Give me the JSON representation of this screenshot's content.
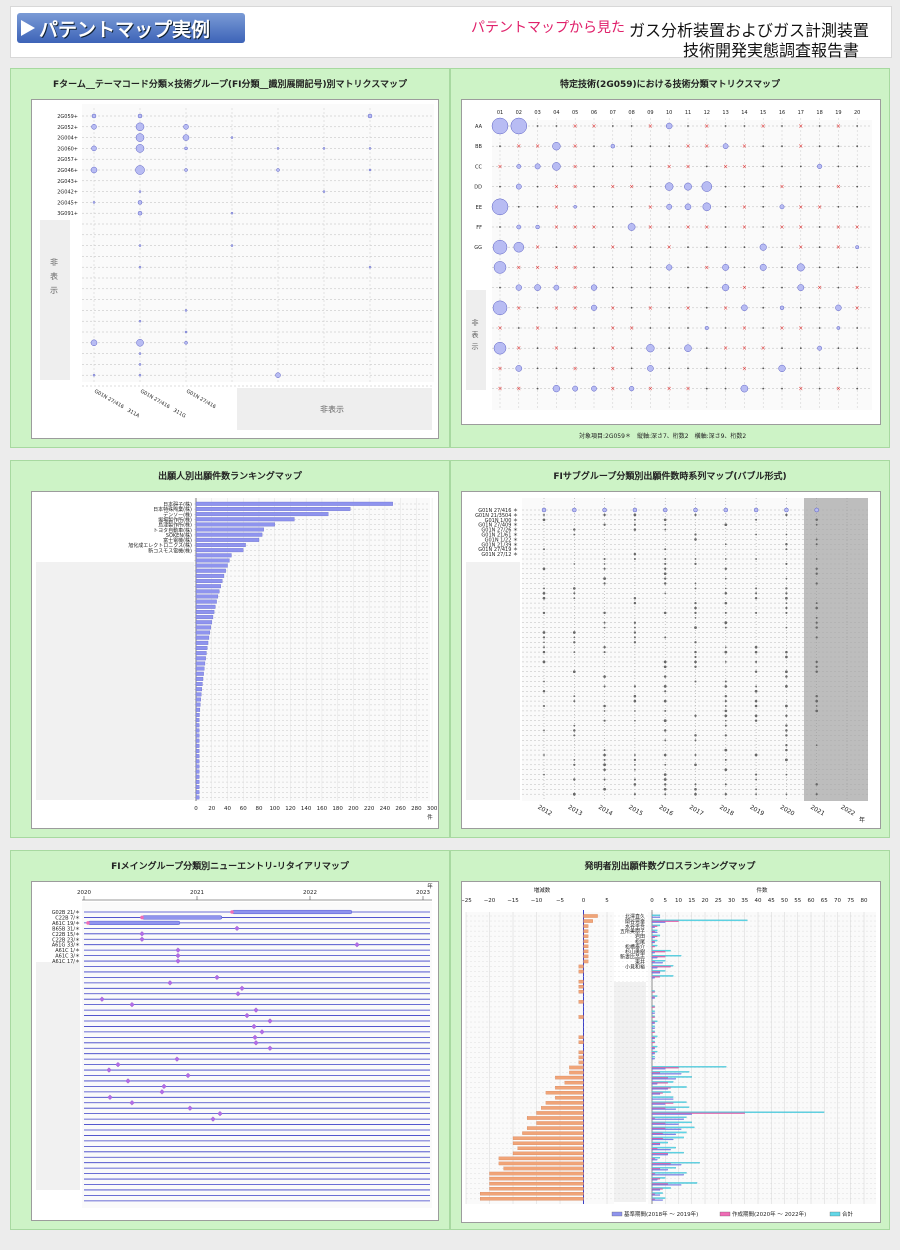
{
  "header": {
    "badge": "パテントマップ実例",
    "red_text": "パテントマップから見た",
    "title_line1": "ガス分析装置およびガス計測装置",
    "title_line2": "技術開発実態調査報告書"
  },
  "panels": {
    "p1": {
      "title": "Fターム__テーマコード分類×技術グループ(FI分類__識別展開記号)別マトリクスマップ",
      "row_labels": [
        "2G059+",
        "2G052+",
        "2G004+",
        "2G060+",
        "2G057+",
        "2G046+",
        "2G043+",
        "2G042+",
        "2G045+",
        "3G091+"
      ],
      "col_labels": [
        "G01N 27/416　311A",
        "G01N 27/416　311G",
        "G01N 27/416"
      ],
      "hidden_label": "非\n表\n示",
      "hidden_label2": "非表示"
    },
    "p2": {
      "title": "特定技術(2G059)における技術分類マトリクスマップ",
      "row_labels": [
        "AA",
        "BB",
        "CC",
        "DD",
        "EE",
        "FF",
        "GG"
      ],
      "col_labels": [
        "01",
        "02",
        "03",
        "04",
        "05",
        "06",
        "07",
        "08",
        "09",
        "10",
        "11",
        "12",
        "13",
        "14",
        "15",
        "16",
        "17",
        "18",
        "19",
        "20"
      ],
      "hidden_label": "非\n表\n示",
      "footnote": "対象項目:2G059＊　縦軸:深さ7、桁数2　横軸:深さ9、桁数2"
    },
    "p3": {
      "title": "出願人別出願件数ランキングマップ",
      "labels": [
        "日本碍子(株)",
        "日本特殊陶業(株)",
        "デンソー(株)",
        "堀場製作所(株)",
        "島津製作所(株)",
        "トヨタ自動車(株)",
        "SOKEN(株)",
        "富士電機(株)",
        "旭化成エレクトロニクス(株)",
        "新コスモス電機(株)"
      ],
      "values": [
        250,
        196,
        168,
        125,
        100,
        86,
        84,
        80,
        63,
        60
      ],
      "x_ticks": [
        "0",
        "20",
        "40",
        "60",
        "80",
        "100",
        "120",
        "140",
        "160",
        "180",
        "200",
        "220",
        "240",
        "260",
        "280",
        "300"
      ],
      "x_unit": "件"
    },
    "p4": {
      "title": "FIサブグループ分類別出願件数時系列マップ(バブル形式)",
      "labels": [
        "G01N 27/416 ＊",
        "G01N 21/3504 ＊",
        "G01N 1/00 ＊",
        "G01N 27/409 ＊",
        "G01N 27/26 ＊",
        "G01N 21/61 ＊",
        "G01N 1/22 ＊",
        "G01N 21/39 ＊",
        "G01N 27/419 ＊",
        "G01N 27/12 ＊"
      ],
      "years": [
        "2012",
        "2013",
        "2014",
        "2015",
        "2016",
        "2017",
        "2018",
        "2019",
        "2020",
        "2021",
        "2022"
      ],
      "x_unit": "年"
    },
    "p5": {
      "title": "FIメイングループ分類別ニューエントリ-リタイアリマップ",
      "labels": [
        "G02B 21/＊",
        "C22B 7/＊",
        "A61C 19/＊",
        "B65B 31/＊",
        "C22B 15/＊",
        "C22B 23/＊",
        "A61G 33/＊",
        "A61C 1/＊",
        "A61C 3/＊",
        "A61C 17/＊"
      ],
      "years": [
        "2020",
        "2021",
        "2022",
        "2023"
      ],
      "x_unit": "年"
    },
    "p6": {
      "title": "発明者別出願件数グロスランキングマップ",
      "names": [
        "北澤直久",
        "関谷晃幸",
        "水谷圭吾",
        "五所美樹子",
        "岩田",
        "松尾",
        "松橋泰介",
        "杉山勇樹",
        "新妻比呂志",
        "東井",
        "小見和裕"
      ],
      "left_label": "増減数",
      "left_ticks": [
        "−25",
        "−20",
        "−15",
        "−10",
        "−5",
        "0",
        "5"
      ],
      "right_label": "件数",
      "right_ticks": [
        "0",
        "5",
        "10",
        "15",
        "20",
        "25",
        "30",
        "35",
        "40",
        "45",
        "50",
        "55",
        "60",
        "65",
        "70",
        "75",
        "80"
      ],
      "legend": [
        "基準期間(2018年 ～ 2019年)",
        "作成期間(2020年 ～ 2022年)",
        "合計"
      ]
    }
  },
  "colors": {
    "bubble": "#b8bcf3",
    "bar_blue": "#8f94ee",
    "bar_pink": "#f06cb6",
    "bar_cyan": "#62d8e8",
    "bar_orange": "#f0a478",
    "cross": "#e03030",
    "panel_bg": "#cdf3c6"
  }
}
